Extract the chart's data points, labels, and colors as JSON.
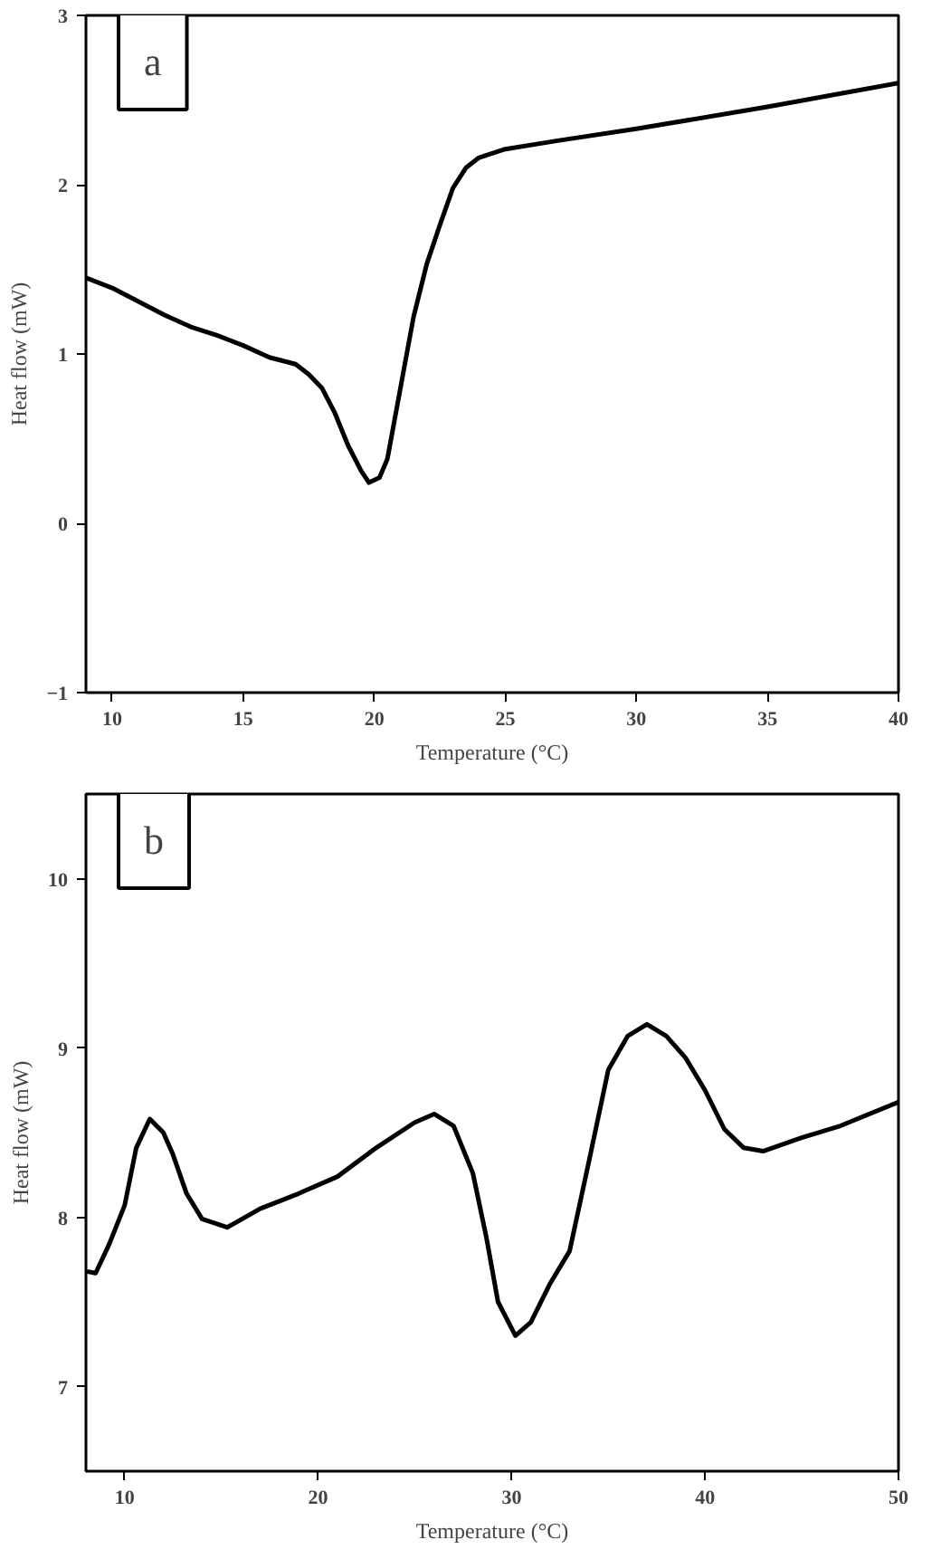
{
  "chart_data": [
    {
      "type": "line",
      "xlabel": "Temperature (°C)",
      "ylabel": "Heat flow (mW)",
      "annotations": [
        "a"
      ],
      "xlim": [
        9,
        40
      ],
      "xticks": [
        10,
        15,
        20,
        25,
        30,
        35,
        40
      ],
      "ylim": [
        -1,
        3
      ],
      "yticks": [
        -1,
        0,
        1,
        2,
        3
      ],
      "grid": false,
      "line_style": "solid",
      "series": [
        {
          "color": "#000000",
          "x": [
            9,
            10,
            11,
            12,
            13,
            14,
            15,
            16,
            17,
            17.5,
            18,
            18.5,
            19,
            19.5,
            19.8,
            20.2,
            20.5,
            21,
            21.5,
            22,
            22.5,
            23,
            23.5,
            24,
            25,
            27,
            30,
            35,
            40
          ],
          "values": [
            1.45,
            1.39,
            1.31,
            1.23,
            1.16,
            1.11,
            1.05,
            0.98,
            0.94,
            0.88,
            0.8,
            0.65,
            0.46,
            0.31,
            0.24,
            0.27,
            0.38,
            0.8,
            1.22,
            1.53,
            1.76,
            1.98,
            2.1,
            2.16,
            2.21,
            2.26,
            2.33,
            2.46,
            2.6
          ]
        }
      ]
    },
    {
      "type": "line",
      "xlabel": "Temperature (°C)",
      "ylabel": "Heat flow (mW)",
      "annotations": [
        "b"
      ],
      "xlim": [
        8,
        50
      ],
      "xticks": [
        10,
        20,
        30,
        40,
        50
      ],
      "ylim": [
        6.5,
        10.5
      ],
      "yticks": [
        7,
        8,
        9,
        10
      ],
      "grid": false,
      "line_style": "solid",
      "series": [
        {
          "color": "#000000",
          "x": [
            8.05,
            8.5,
            9.2,
            10,
            10.6,
            11.3,
            12,
            12.5,
            13.2,
            14,
            15.3,
            17,
            19,
            21,
            23,
            25,
            26,
            27,
            28,
            28.7,
            29.3,
            30.2,
            31,
            32,
            33,
            34,
            35,
            36,
            37,
            38,
            39,
            40,
            41,
            42,
            43,
            45,
            47,
            50
          ],
          "values": [
            7.68,
            7.67,
            7.84,
            8.07,
            8.41,
            8.58,
            8.5,
            8.37,
            8.14,
            7.99,
            7.94,
            8.05,
            8.14,
            8.24,
            8.41,
            8.56,
            8.61,
            8.54,
            8.26,
            7.88,
            7.5,
            7.3,
            7.38,
            7.61,
            7.8,
            8.33,
            8.87,
            9.07,
            9.14,
            9.07,
            8.94,
            8.75,
            8.52,
            8.41,
            8.39,
            8.47,
            8.54,
            8.68
          ]
        }
      ]
    }
  ]
}
